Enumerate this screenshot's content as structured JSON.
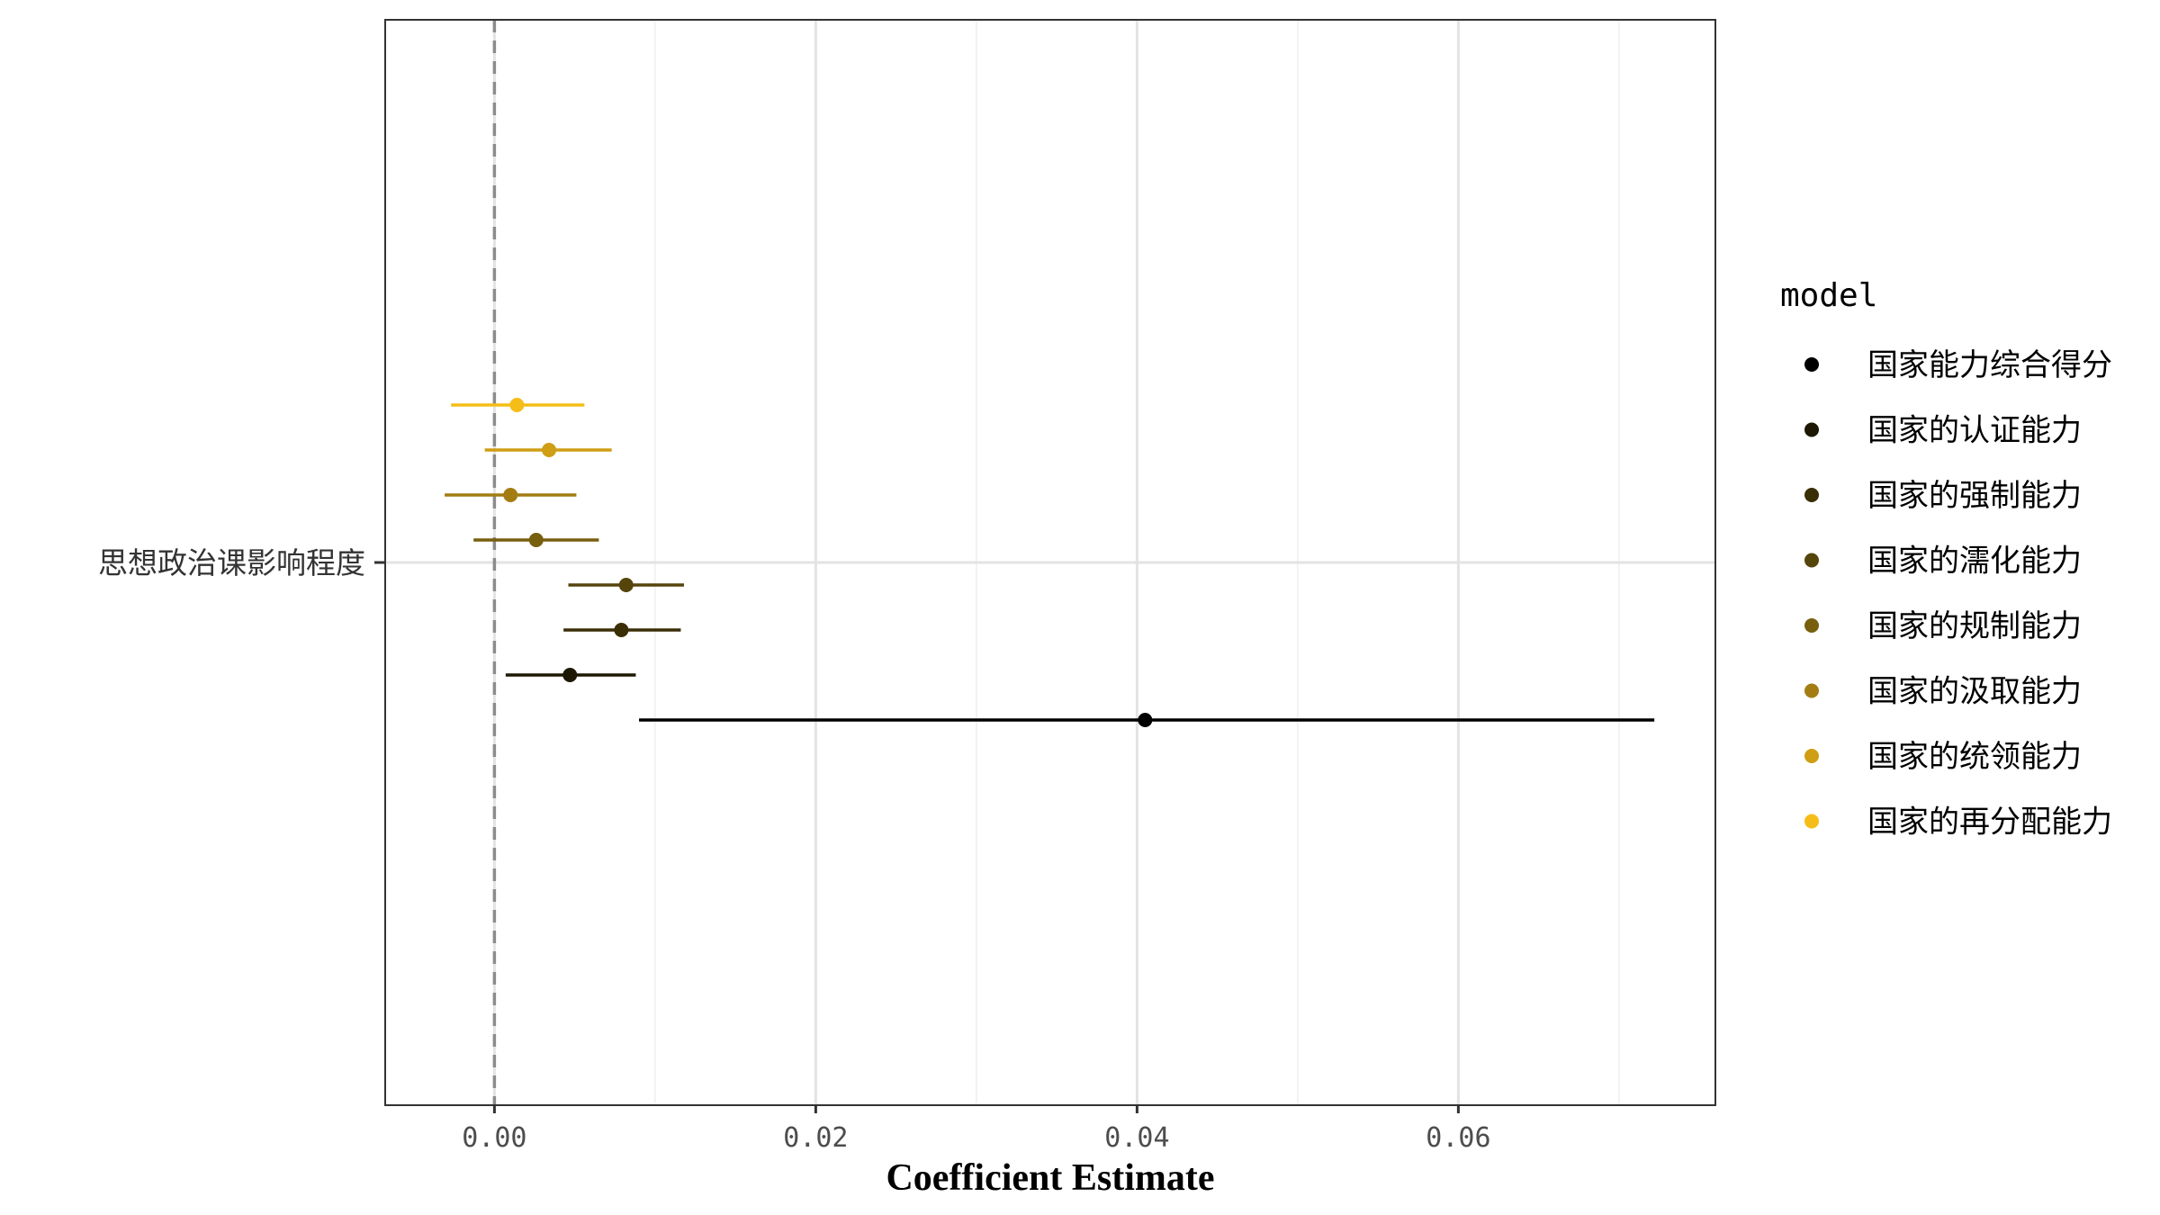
{
  "chart_data": {
    "type": "scatter",
    "subtype": "coefficient-plot",
    "xlabel": "Coefficient Estimate",
    "ylabel": "",
    "xlim": [
      -0.0068,
      0.076
    ],
    "x_ticks": [
      0.0,
      0.02,
      0.04,
      0.06
    ],
    "x_tick_labels": [
      "0.00",
      "0.02",
      "0.04",
      "0.06"
    ],
    "y_category": "思想政治课影响程度",
    "reference_line": {
      "x": 0,
      "style": "dashed",
      "color": "#8c8c8c"
    },
    "grid": true,
    "legend": {
      "title": "model",
      "position": "right"
    },
    "series": [
      {
        "name": "国家能力综合得分",
        "estimate": 0.0405,
        "ci_low": 0.009,
        "ci_high": 0.0722,
        "color": "#000000"
      },
      {
        "name": "国家的认证能力",
        "estimate": 0.0047,
        "ci_low": 0.0007,
        "ci_high": 0.0088,
        "color": "#1c1804"
      },
      {
        "name": "国家的强制能力",
        "estimate": 0.0079,
        "ci_low": 0.0043,
        "ci_high": 0.0116,
        "color": "#3a2e07"
      },
      {
        "name": "国家的濡化能力",
        "estimate": 0.0082,
        "ci_low": 0.0046,
        "ci_high": 0.0118,
        "color": "#56450b"
      },
      {
        "name": "国家的规制能力",
        "estimate": 0.0026,
        "ci_low": -0.0013,
        "ci_high": 0.0065,
        "color": "#775f0e"
      },
      {
        "name": "国家的汲取能力",
        "estimate": 0.001,
        "ci_low": -0.0031,
        "ci_high": 0.0051,
        "color": "#a37d12"
      },
      {
        "name": "国家的统领能力",
        "estimate": 0.0034,
        "ci_low": -0.0006,
        "ci_high": 0.0073,
        "color": "#cf9e14"
      },
      {
        "name": "国家的再分配能力",
        "estimate": 0.0014,
        "ci_low": -0.0027,
        "ci_high": 0.0056,
        "color": "#f5bd17"
      }
    ]
  }
}
